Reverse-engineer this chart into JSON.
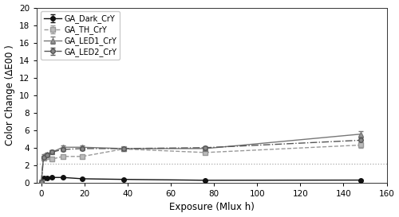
{
  "title": "",
  "xlabel": "Exposure (Mlux h)",
  "ylabel": "Color Change (ΔE00 )",
  "xlim": [
    -2,
    160
  ],
  "ylim": [
    0,
    20
  ],
  "yticks": [
    0,
    2,
    4,
    6,
    8,
    10,
    12,
    14,
    16,
    18,
    20
  ],
  "xticks": [
    0,
    20,
    40,
    60,
    80,
    100,
    120,
    140,
    160
  ],
  "dashed_line_y": 2.2,
  "series": [
    {
      "label": "GA_Dark_CrY",
      "color": "#111111",
      "linestyle": "-",
      "marker": "o",
      "markerfacecolor": "#111111",
      "markeredgecolor": "#111111",
      "markersize": 4,
      "linewidth": 1.0,
      "x": [
        0,
        1,
        2.5,
        5,
        10,
        19,
        38,
        76,
        148
      ],
      "y": [
        0.05,
        0.5,
        0.55,
        0.6,
        0.6,
        0.45,
        0.38,
        0.28,
        0.3
      ],
      "yerr": [
        0.03,
        0.06,
        0.06,
        0.06,
        0.06,
        0.04,
        0.04,
        0.04,
        0.04
      ]
    },
    {
      "label": "GA_TH_CrY",
      "color": "#999999",
      "linestyle": "--",
      "marker": "s",
      "markerfacecolor": "#bbbbbb",
      "markeredgecolor": "#999999",
      "markersize": 4,
      "linewidth": 1.0,
      "x": [
        0,
        1,
        2.5,
        5,
        10,
        19,
        38,
        76,
        148
      ],
      "y": [
        0.05,
        2.8,
        3.0,
        2.7,
        3.0,
        3.0,
        3.85,
        3.45,
        4.3
      ],
      "yerr": [
        0.03,
        0.18,
        0.15,
        0.18,
        0.18,
        0.18,
        0.18,
        0.18,
        0.28
      ]
    },
    {
      "label": "GA_LED1_CrY",
      "color": "#777777",
      "linestyle": "-",
      "marker": "^",
      "markerfacecolor": "#999999",
      "markeredgecolor": "#777777",
      "markersize": 4,
      "linewidth": 1.0,
      "x": [
        0,
        1,
        2.5,
        5,
        10,
        19,
        38,
        76,
        148
      ],
      "y": [
        0.05,
        3.1,
        3.3,
        3.5,
        4.05,
        4.05,
        3.9,
        3.9,
        5.55
      ],
      "yerr": [
        0.03,
        0.18,
        0.18,
        0.18,
        0.18,
        0.18,
        0.18,
        0.18,
        0.38
      ]
    },
    {
      "label": "GA_LED2_CrY",
      "color": "#555555",
      "linestyle": "-.",
      "marker": "o",
      "markerfacecolor": "#888888",
      "markeredgecolor": "#555555",
      "markersize": 4,
      "linewidth": 1.0,
      "x": [
        0,
        1,
        2.5,
        5,
        10,
        19,
        38,
        76,
        148
      ],
      "y": [
        0.05,
        2.9,
        3.2,
        3.5,
        3.8,
        3.9,
        3.9,
        4.0,
        4.85
      ],
      "yerr": [
        0.03,
        0.18,
        0.14,
        0.18,
        0.18,
        0.18,
        0.18,
        0.18,
        0.32
      ]
    }
  ],
  "background_color": "#ffffff",
  "legend_fontsize": 7,
  "axis_fontsize": 8.5,
  "tick_fontsize": 7.5
}
